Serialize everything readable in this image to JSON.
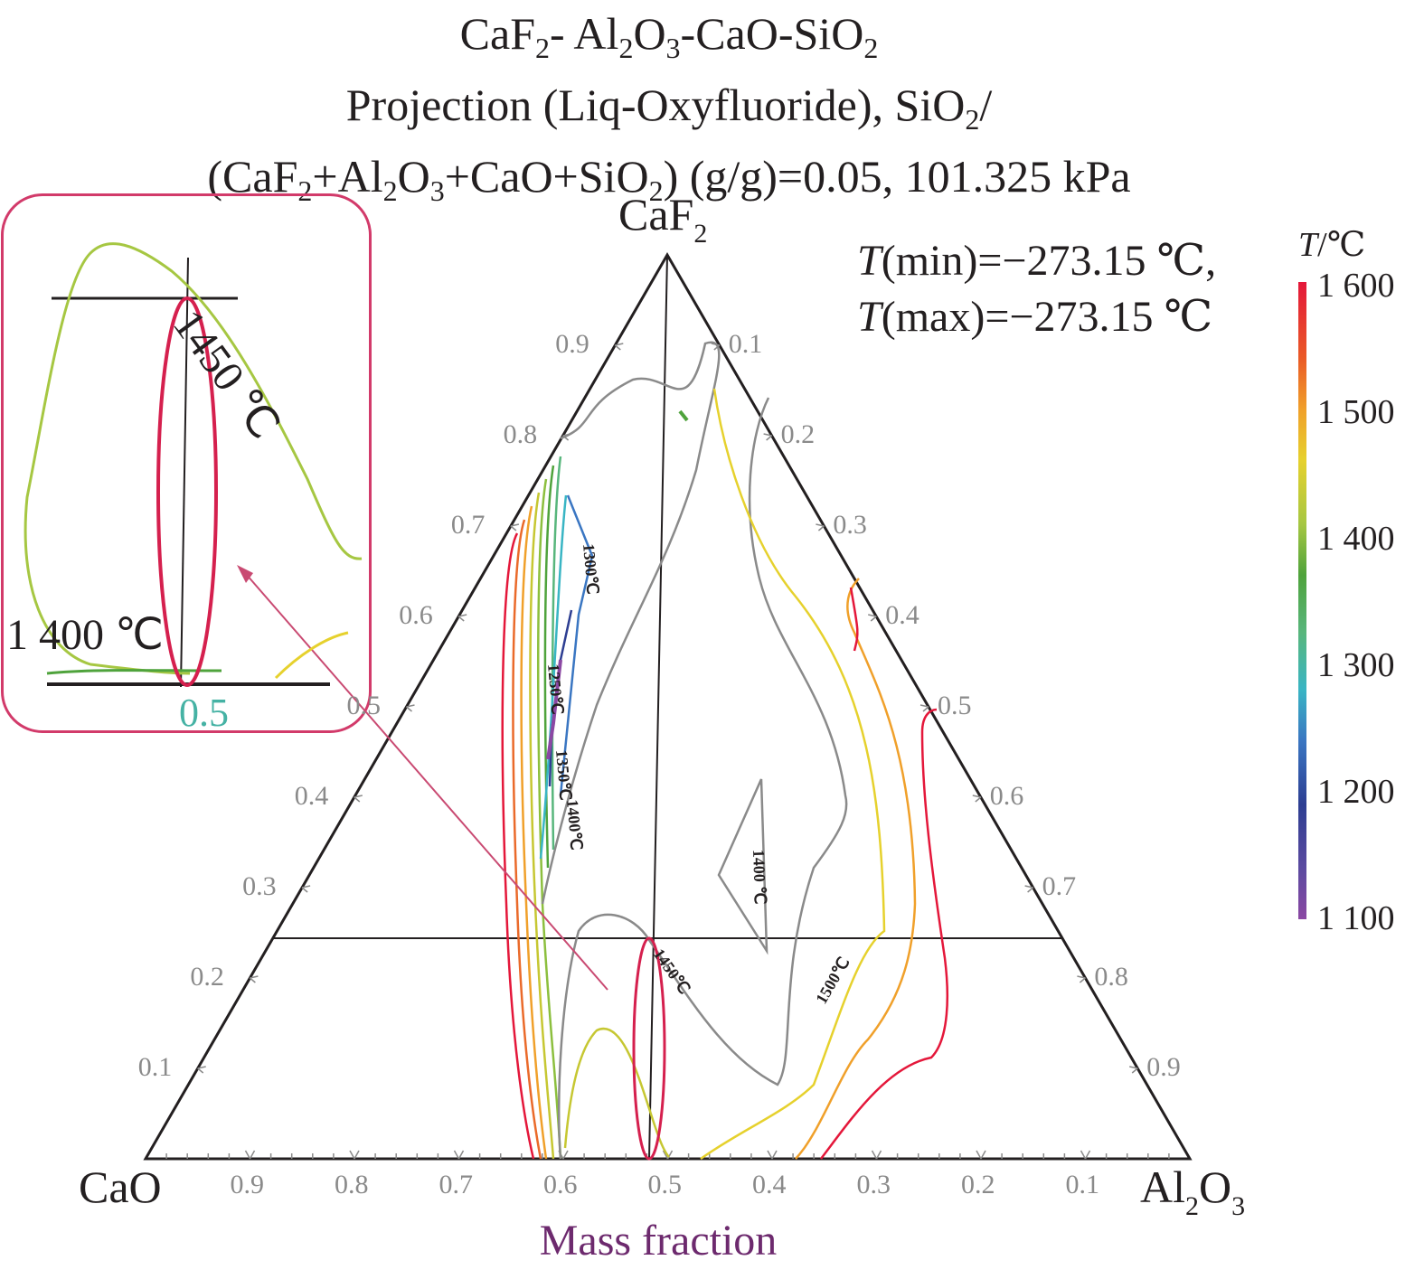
{
  "title": {
    "line1": {
      "a": "CaF",
      "s1": "2",
      "b": "- Al",
      "s2": "2",
      "c": "O",
      "s3": "3",
      "d": "-CaO-SiO",
      "s4": "2"
    },
    "line2": {
      "a": "Projection (Liq-Oxyfluoride), SiO",
      "s1": "2",
      "b": "/"
    },
    "line3": {
      "a": "(CaF",
      "s1": "2",
      "b": "+Al",
      "s2": "2",
      "c": "O",
      "s3": "3",
      "d": "+CaO+SiO",
      "s4": "2",
      "e": ") (g/g)=0.05, 101.325 kPa"
    }
  },
  "corners": {
    "top": {
      "text": "CaF",
      "sub": "2"
    },
    "left": {
      "text": "CaO"
    },
    "right": {
      "text": "Al",
      "sub1": "2",
      "mid": "O",
      "sub2": "3"
    }
  },
  "axis_label": "Mass fraction",
  "temperature_range": {
    "tmin_sym": "T",
    "tmin_text": "(min)=−273.15 ℃,",
    "tmax_sym": "T",
    "tmax_text": "(max)=−273.15 ℃"
  },
  "colorbar": {
    "title_sym": "T",
    "title_unit": "/℃",
    "ticks": [
      "1 600",
      "1 500",
      "1 400",
      "1 300",
      "1 200",
      "1 100"
    ],
    "colors": [
      "#e4173a",
      "#f0a02a",
      "#4fa33c",
      "#39b5c4",
      "#2d3e92",
      "#8b48a3"
    ]
  },
  "ticks": {
    "left_edge": [
      "0.1",
      "0.2",
      "0.3",
      "0.4",
      "0.5",
      "0.6",
      "0.7",
      "0.8",
      "0.9"
    ],
    "right_edge": [
      "0.1",
      "0.2",
      "0.3",
      "0.4",
      "0.5",
      "0.6",
      "0.7",
      "0.8",
      "0.9"
    ],
    "bottom_edge": [
      "0.9",
      "0.8",
      "0.7",
      "0.6",
      "0.5",
      "0.4",
      "0.3",
      "0.2",
      "0.1"
    ]
  },
  "contour_labels": [
    "1300℃",
    "1250℃",
    "1350℃",
    "1400℃",
    "1400 ℃",
    "1450℃",
    "1500℃"
  ],
  "inset": {
    "label_1450": "1450 ℃",
    "label_1400": "1 400 ℃",
    "label_05": "0.5"
  }
}
